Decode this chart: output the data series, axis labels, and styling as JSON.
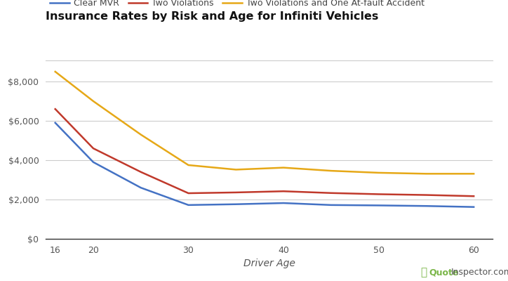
{
  "title": "Insurance Rates by Risk and Age for Infiniti Vehicles",
  "xlabel": "Driver Age",
  "ages": [
    16,
    20,
    25,
    30,
    35,
    40,
    45,
    50,
    55,
    60
  ],
  "clear_mvr": [
    5900,
    3900,
    2600,
    1720,
    1760,
    1820,
    1720,
    1700,
    1670,
    1620
  ],
  "two_violations": [
    6600,
    4600,
    3400,
    2320,
    2360,
    2420,
    2330,
    2270,
    2230,
    2170
  ],
  "two_viol_accident": [
    8500,
    7000,
    5300,
    3750,
    3520,
    3620,
    3460,
    3360,
    3310,
    3310
  ],
  "color_clear": "#4472C4",
  "color_two_viol": "#C0392B",
  "color_two_viol_acc": "#E6A817",
  "legend_labels": [
    "Clear MVR",
    "Two Violations",
    "Two Violations and One At-fault Accident"
  ],
  "ylim": [
    0,
    9000
  ],
  "yticks": [
    0,
    2000,
    4000,
    6000,
    8000
  ],
  "xticks": [
    16,
    20,
    30,
    40,
    50,
    60
  ],
  "xtick_labels": [
    "16",
    "20",
    "30",
    "40",
    "50",
    "60"
  ],
  "background_color": "#ffffff",
  "grid_color": "#cccccc",
  "watermark_color_q": "#7ab648",
  "watermark_color_text": "#555555",
  "watermark_bold": "Quote",
  "watermark_normal": "Inspector.com"
}
